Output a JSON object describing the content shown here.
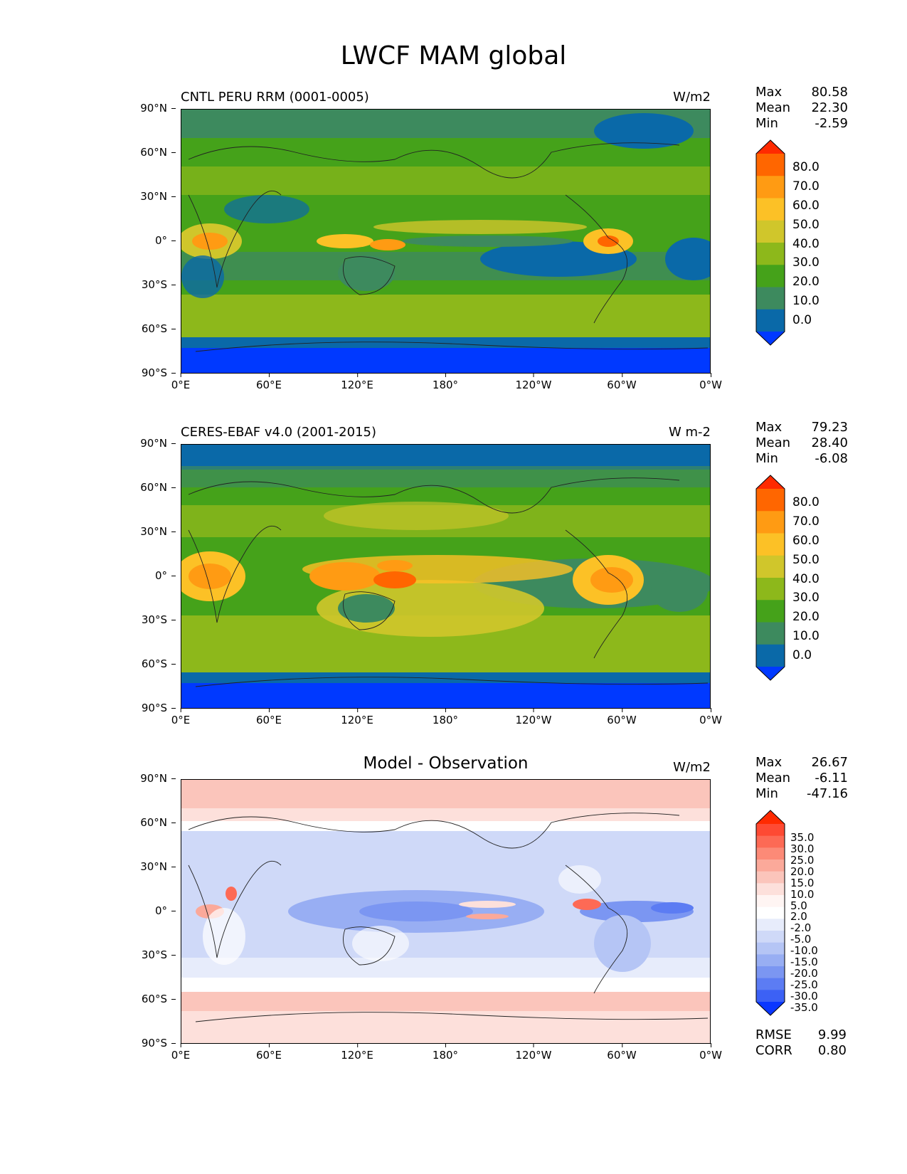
{
  "title": "LWCF MAM global",
  "map_axes": {
    "lat_ticks": [
      "90°N",
      "60°N",
      "30°N",
      "0°",
      "30°S",
      "60°S",
      "90°S"
    ],
    "lon_ticks": [
      "0°E",
      "60°E",
      "120°E",
      "180°",
      "120°W",
      "60°W",
      "0°W"
    ]
  },
  "panels": [
    {
      "title": "CNTL PERU RRM (0001-0005)",
      "title_center": "",
      "units": "W/m2",
      "stats": [
        {
          "label": "Max",
          "value": "80.58"
        },
        {
          "label": "Mean",
          "value": "22.30"
        },
        {
          "label": "Min",
          "value": "-2.59"
        }
      ],
      "colorbar": {
        "labels": [
          "80.0",
          "70.0",
          "60.0",
          "50.0",
          "40.0",
          "30.0",
          "20.0",
          "10.0",
          "0.0"
        ],
        "colors": [
          "#ff2a00",
          "#ff6600",
          "#ff9b13",
          "#fcc126",
          "#d0c62b",
          "#8db81b",
          "#45a21a",
          "#3d8a5e",
          "#0a69a8",
          "#0039ff"
        ]
      }
    },
    {
      "title": "CERES-EBAF v4.0 (2001-2015)",
      "title_center": "",
      "units": "W m-2",
      "stats": [
        {
          "label": "Max",
          "value": "79.23"
        },
        {
          "label": "Mean",
          "value": "28.40"
        },
        {
          "label": "Min",
          "value": "-6.08"
        }
      ],
      "colorbar": {
        "labels": [
          "80.0",
          "70.0",
          "60.0",
          "50.0",
          "40.0",
          "30.0",
          "20.0",
          "10.0",
          "0.0"
        ],
        "colors": [
          "#ff2a00",
          "#ff6600",
          "#ff9b13",
          "#fcc126",
          "#d0c62b",
          "#8db81b",
          "#45a21a",
          "#3d8a5e",
          "#0a69a8",
          "#0039ff"
        ]
      }
    },
    {
      "title": "",
      "title_center": "Model - Observation",
      "units": "W/m2",
      "stats": [
        {
          "label": "Max",
          "value": "26.67"
        },
        {
          "label": "Mean",
          "value": "-6.11"
        },
        {
          "label": "Min",
          "value": "-47.16"
        }
      ],
      "colorbar": {
        "labels": [
          "35.0",
          "30.0",
          "25.0",
          "20.0",
          "15.0",
          "10.0",
          "5.0",
          "2.0",
          "-2.0",
          "-5.0",
          "-10.0",
          "-15.0",
          "-20.0",
          "-25.0",
          "-30.0",
          "-35.0"
        ],
        "colors": [
          "#ff2a00",
          "#fe4a33",
          "#fd6a55",
          "#fc8a77",
          "#fba99a",
          "#fbc5bb",
          "#fde0db",
          "#fff5f3",
          "#ffffff",
          "#e7ecfb",
          "#cfd9f8",
          "#b5c5f5",
          "#98aef3",
          "#7b96f2",
          "#5c7cf3",
          "#3c61f5",
          "#0a37ff"
        ]
      },
      "extra_stats": [
        {
          "label": "RMSE",
          "value": "9.99"
        },
        {
          "label": "CORR",
          "value": "0.80"
        }
      ]
    }
  ]
}
